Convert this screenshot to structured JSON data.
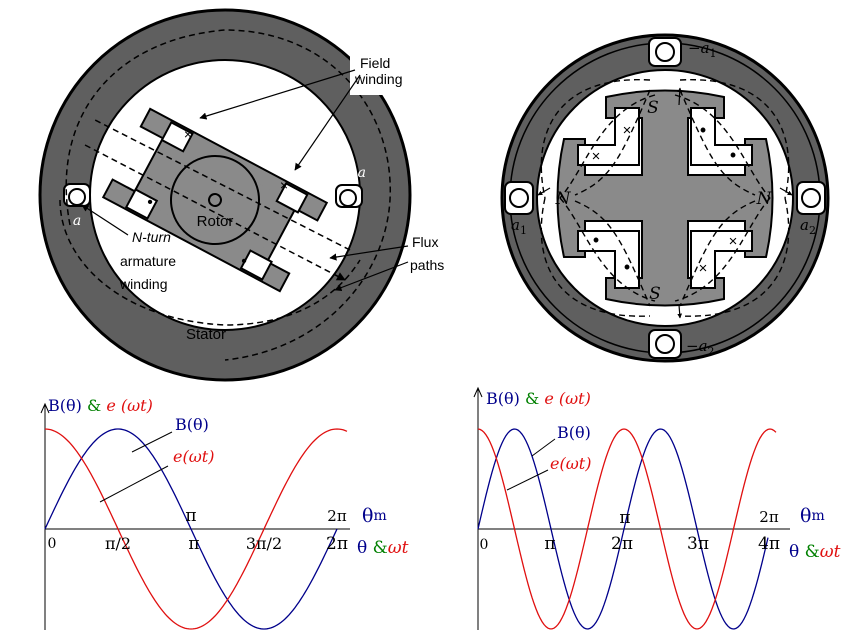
{
  "colors": {
    "stator": "#5f5f5f",
    "rotor": "#8a8a8a",
    "b_curve": "#00008b",
    "e_curve": "#e01010",
    "amp_green": "#008000"
  },
  "left_machine": {
    "labels": {
      "field_winding_1": "Field",
      "field_winding_2": "winding",
      "rotor": "Rotor",
      "armature_1": "N-turn",
      "armature_2": "armature",
      "armature_3": "winding",
      "flux_1": "Flux",
      "flux_2": "paths",
      "stator": "Stator",
      "a": "a",
      "minus_a": "−a"
    },
    "coil_marks": [
      "×",
      "×",
      "•",
      "•"
    ]
  },
  "right_machine": {
    "labels": {
      "s_top": "S",
      "s_bottom": "S",
      "n_left": "N",
      "n_right": "N",
      "minus_a1": "−a",
      "minus_a1_sub": "1",
      "a1": "a",
      "a1_sub": "1",
      "a2": "a",
      "a2_sub": "2",
      "minus_a2": "−a",
      "minus_a2_sub": "2"
    },
    "coil_marks": [
      "×",
      "×",
      "•",
      "•",
      "•",
      "•",
      "×",
      "×"
    ]
  },
  "left_plot": {
    "axis_title_b": "B(θ)",
    "axis_title_amp": "&",
    "axis_title_e": "e (ωt)",
    "curve_label_b": "B(θ)",
    "curve_label_e": "e(ωt)",
    "tick_labels": [
      "0",
      "π/2",
      "π",
      "3π/2",
      "2π"
    ],
    "mech_tick_labels": [
      "π",
      "2π"
    ],
    "x_label_mech": "θ",
    "x_label_mech_sub": "m",
    "x_label_theta": "θ",
    "x_label_amp": "&",
    "x_label_wt": "ωt"
  },
  "right_plot": {
    "axis_title_b": "B(θ)",
    "axis_title_amp": "&",
    "axis_title_e": "e (ωt)",
    "curve_label_b": "B(θ)",
    "curve_label_e": "e(ωt)",
    "tick_labels": [
      "0",
      "π",
      "2π",
      "3π",
      "4π"
    ],
    "mech_tick_labels": [
      "π",
      "2π"
    ],
    "x_label_mech": "θ",
    "x_label_mech_sub": "m",
    "x_label_theta": "θ",
    "x_label_amp": "&",
    "x_label_wt": "ωt"
  }
}
